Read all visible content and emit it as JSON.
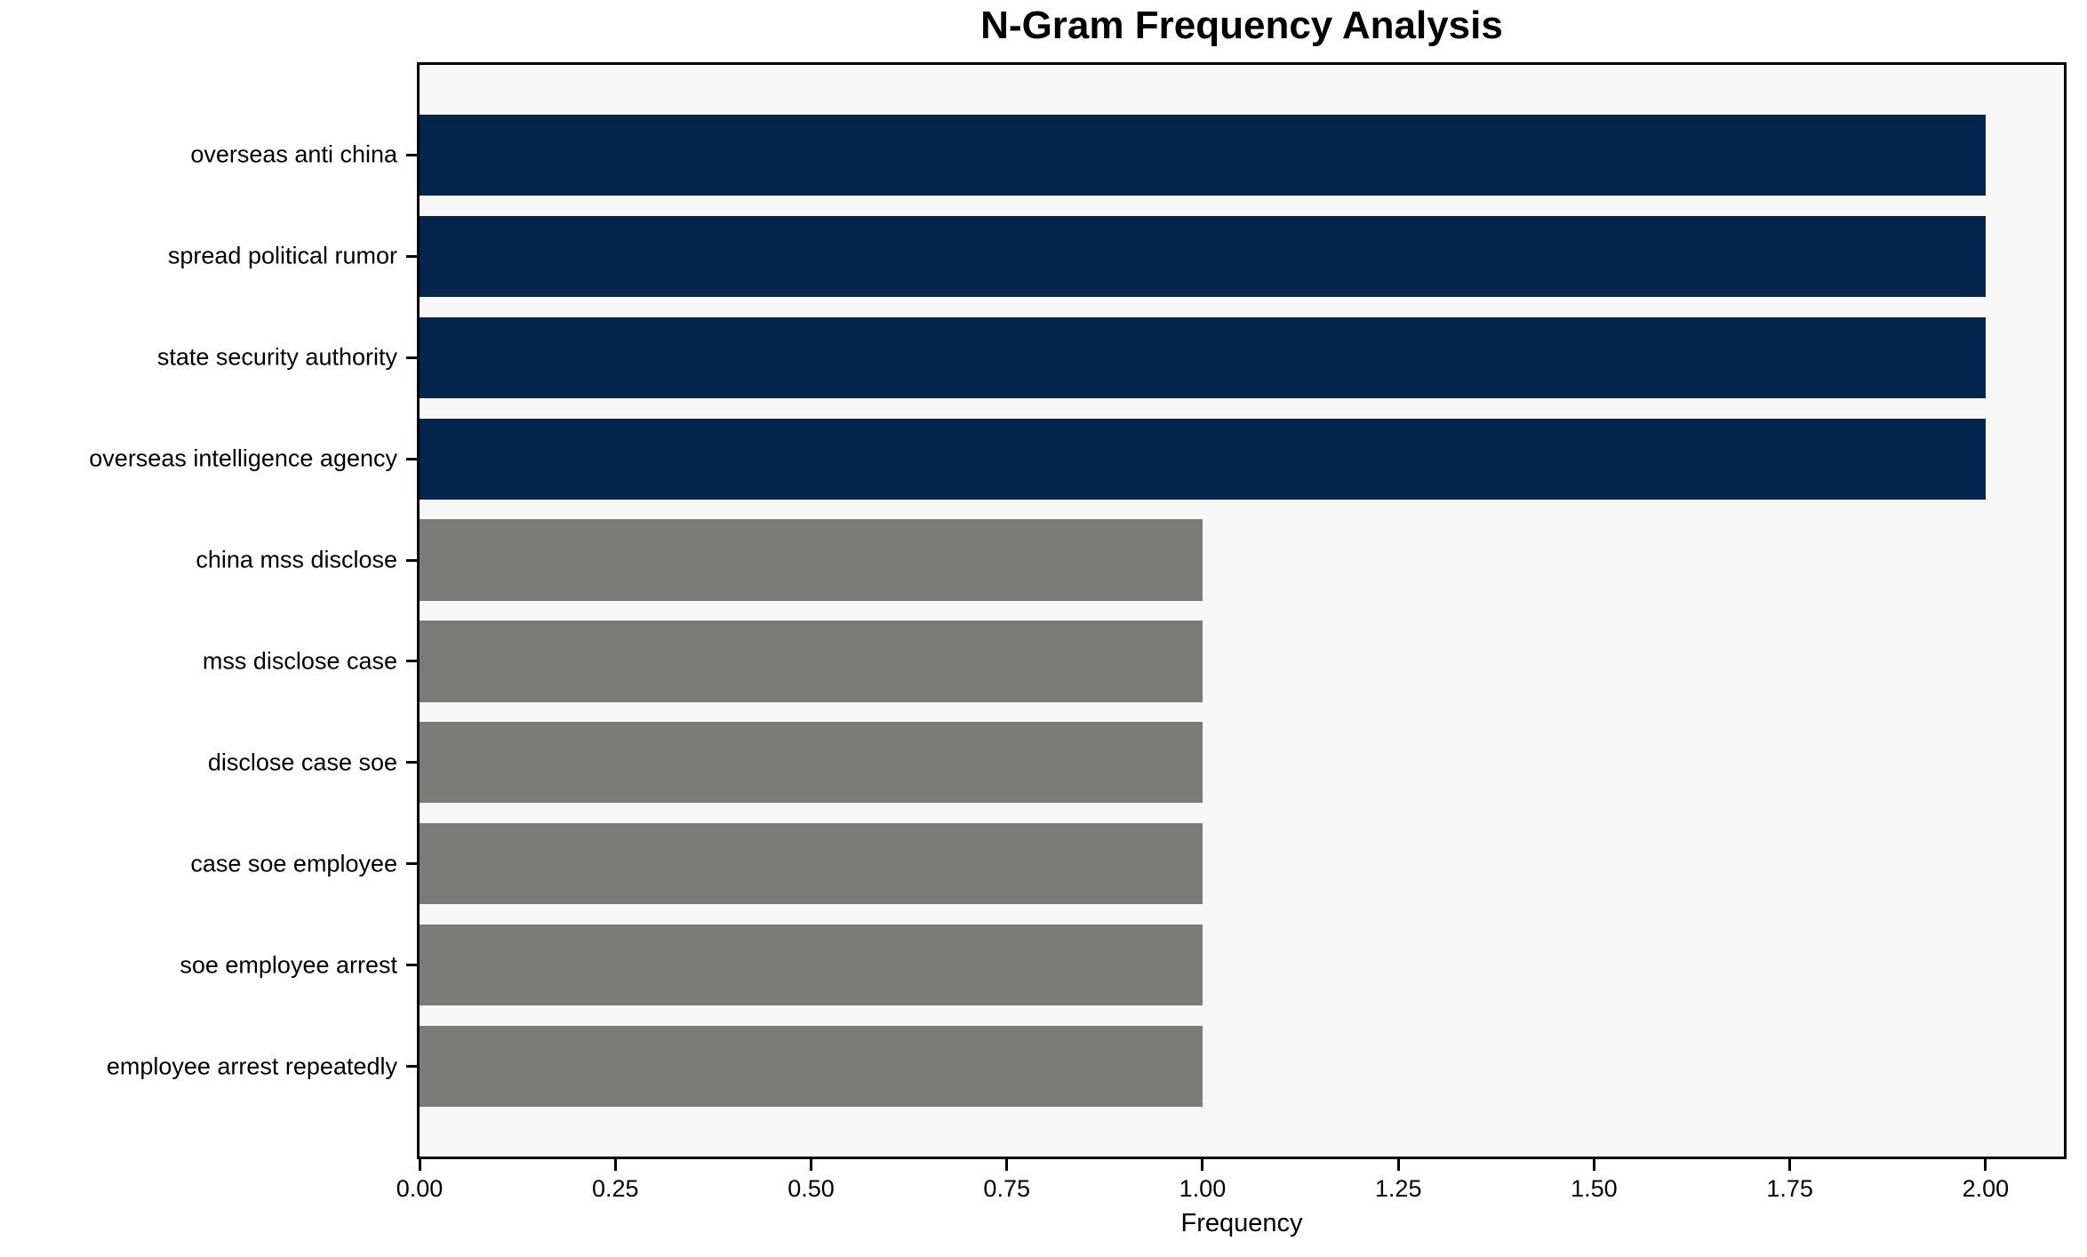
{
  "chart_data": {
    "type": "bar",
    "orientation": "horizontal",
    "title": "N-Gram Frequency Analysis",
    "xlabel": "Frequency",
    "ylabel": "",
    "categories": [
      "overseas anti china",
      "spread political rumor",
      "state security authority",
      "overseas intelligence agency",
      "china mss disclose",
      "mss disclose case",
      "disclose case soe",
      "case soe employee",
      "soe employee arrest",
      "employee arrest repeatedly"
    ],
    "values": [
      2,
      2,
      2,
      2,
      1,
      1,
      1,
      1,
      1,
      1
    ],
    "bar_colors": [
      "#03254e",
      "#03254e",
      "#03254e",
      "#03254e",
      "#7a7a76",
      "#7a7a76",
      "#7a7a76",
      "#7a7a76",
      "#7a7a76",
      "#7a7a76"
    ],
    "xlim": [
      0,
      2.1
    ],
    "xticks": [
      0,
      0.25,
      0.5,
      0.75,
      1.0,
      1.25,
      1.5,
      1.75,
      2.0
    ],
    "xtick_labels": [
      "0.00",
      "0.25",
      "0.50",
      "0.75",
      "1.00",
      "1.25",
      "1.50",
      "1.75",
      "2.00"
    ],
    "grid": false,
    "legend": null,
    "colors": {
      "highlight_bar": "#03254e",
      "default_bar": "#7a7a76",
      "plot_background": "#f7f7f7",
      "figure_background": "#ffffff",
      "spine": "#000000",
      "text": "#000000"
    }
  }
}
